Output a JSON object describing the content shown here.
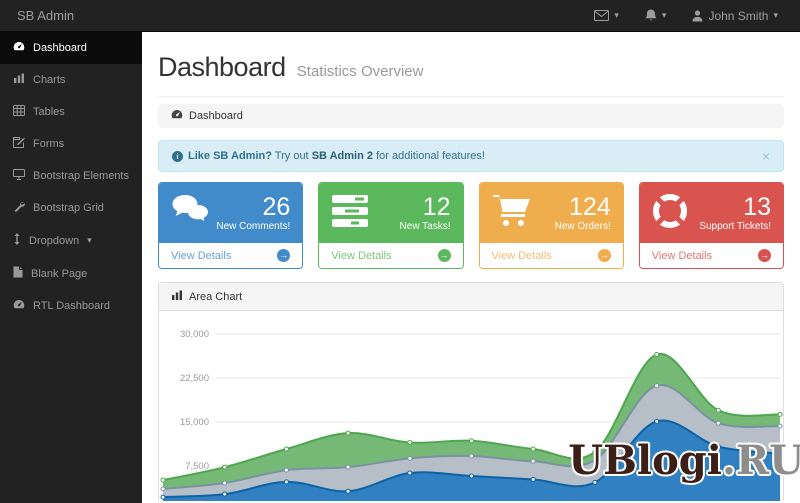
{
  "navbar": {
    "brand": "SB Admin",
    "menus": [
      {
        "icon": "envelope-icon",
        "caret": "▾"
      },
      {
        "icon": "bell-icon",
        "caret": "▾"
      },
      {
        "icon": "user-icon",
        "label": "John Smith",
        "caret": "▾"
      }
    ]
  },
  "sidebar": {
    "items": [
      {
        "icon": "gauge-icon",
        "label": "Dashboard",
        "active": true
      },
      {
        "icon": "bar-chart-icon",
        "label": "Charts"
      },
      {
        "icon": "table-icon",
        "label": "Tables"
      },
      {
        "icon": "edit-icon",
        "label": "Forms"
      },
      {
        "icon": "desktop-icon",
        "label": "Bootstrap Elements"
      },
      {
        "icon": "wrench-icon",
        "label": "Bootstrap Grid"
      },
      {
        "icon": "arrows-v-icon",
        "label": "Dropdown",
        "caret": "▾"
      },
      {
        "icon": "file-icon",
        "label": "Blank Page"
      },
      {
        "icon": "gauge-icon",
        "label": "RTL Dashboard"
      }
    ]
  },
  "page": {
    "title": "Dashboard",
    "subtitle": "Statistics Overview",
    "breadcrumb": "Dashboard"
  },
  "alert": {
    "icon": "info-circle-icon",
    "bold": "Like SB Admin?",
    "middle": " Try out ",
    "link": "SB Admin 2",
    "rest": " for additional features!",
    "close": "×"
  },
  "stats": [
    {
      "icon": "comments-icon",
      "value": "26",
      "label": "New Comments!",
      "action": "View Details",
      "color": "#428bca"
    },
    {
      "icon": "tasks-icon",
      "value": "12",
      "label": "New Tasks!",
      "action": "View Details",
      "color": "#5cb85c"
    },
    {
      "icon": "cart-icon",
      "value": "124",
      "label": "New Orders!",
      "action": "View Details",
      "color": "#f0ad4e"
    },
    {
      "icon": "life-ring-icon",
      "value": "13",
      "label": "Support Tickets!",
      "action": "View Details",
      "color": "#d9534f"
    }
  ],
  "chart_panel": {
    "icon": "bar-chart-icon",
    "title": "Area Chart"
  },
  "chart_data": {
    "type": "area",
    "stacked": true,
    "title": "Area Chart",
    "x_axis_visible": false,
    "y_ticks": [
      7500,
      15000,
      22500,
      30000
    ],
    "y_tick_labels": [
      "7,500",
      "15,000",
      "22,500",
      "30,000"
    ],
    "ylim": [
      0,
      30000
    ],
    "grid": true,
    "legend": "none",
    "series": [
      {
        "name": "series-blue",
        "color": "#0b62a4",
        "fill": "#3180c1",
        "values": [
          2200,
          2700,
          4800,
          3200,
          6300,
          5800,
          5200,
          4700,
          15100,
          10800,
          9600
        ]
      },
      {
        "name": "series-gray",
        "color": "#7a92a3",
        "fill": "#b6bfc7",
        "values": [
          1400,
          1900,
          2000,
          4100,
          2500,
          3400,
          3100,
          3800,
          6100,
          4000,
          4700
        ]
      },
      {
        "name": "series-green",
        "color": "#4da74d",
        "fill": "#76b976",
        "values": [
          1500,
          2700,
          3600,
          5800,
          2700,
          2600,
          2100,
          1400,
          5300,
          2200,
          2000
        ]
      }
    ]
  },
  "watermark": {
    "main": "UBlogi",
    "tld": ".RU"
  },
  "colors": {
    "navbar_bg": "#222222",
    "sidebar_active_bg": "#0b0b0b",
    "primary": "#428bca",
    "success": "#5cb85c",
    "warning": "#f0ad4e",
    "danger": "#d9534f",
    "alert_bg": "#d9edf7",
    "alert_border": "#bce8f1",
    "alert_text": "#31708f",
    "grid_line": "#e7e7e7",
    "watermark_main": "#3b201a",
    "watermark_tld": "#8d8d8d"
  }
}
